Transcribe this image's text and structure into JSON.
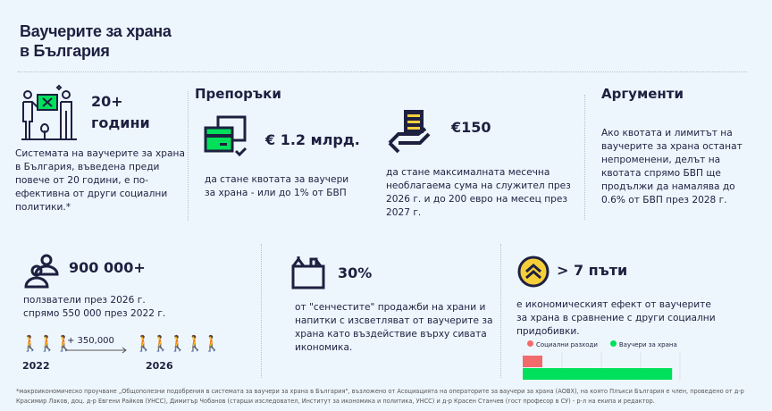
{
  "title": {
    "line1": "Ваучерите за храна",
    "line2": "в България"
  },
  "history": {
    "value": "20+",
    "unit": "години",
    "text": "Системата на ваучерите за храна в България, въведена преди повече от 20 години, е по-ефективна от други социални политики.*"
  },
  "recommendations": {
    "heading": "Препоръки",
    "quota": {
      "value": "€ 1.2 млрд.",
      "text": "да стане квотата за ваучери за храна - или до 1% от БВП"
    },
    "limit": {
      "value": "€150",
      "text": "да стане максималната месечна необлагаема сума на служител през 2026 г. и до 200 евро на месец през 2027 г."
    }
  },
  "arguments": {
    "heading": "Аргументи",
    "text": "Ако квотата и лимитът на ваучерите за храна останат непроменени, делът на квотата спрямо БВП ще продължи да намалява до 0.6% от БВП през 2028 г."
  },
  "users": {
    "value": "900 000+",
    "text1": "ползватели през 2026 г.",
    "text2": "спрямо 550 000 през 2022 г.",
    "delta": "+ 350,000",
    "year_from": "2022",
    "year_to": "2026"
  },
  "grey": {
    "value": "30%",
    "text": " от \"сенчестите\" продажби на храни и напитки с изсветляват от ваучерите за храна като въздействие върху сивата икономика."
  },
  "effect": {
    "value": "> 7 пъти",
    "text": "е икономическият ефект от ваучерите за храна в сравнение с други социални придобивки."
  },
  "chart_data": {
    "type": "bar",
    "orientation": "horizontal",
    "categories": [
      "Социални разходи",
      "Ваучери за храна"
    ],
    "values": [
      1,
      7.6
    ],
    "xlim": [
      0,
      8
    ],
    "legend": "top",
    "colors": [
      "#f26b6b",
      "#00e05a"
    ]
  },
  "footnote": "*макроикономическо проучване „Общополезни подобрения в системата за ваучери за храна в България\", възложено от Асоциацията на операторите за ваучери за храна (АОВХ), на която Плъкси България е член, проведено от д-р Красимир Лаков, доц. д-р Евгени Райков (УНСС), Димитър Чобанов (старши изследовател, Институт за икономика и политика, УНСС) и д-р Красен Станчев (гост професор в СУ) - р-л на екипа и редактор.",
  "colors": {
    "navy": "#1e2040",
    "green": "#00e05a",
    "yellow": "#f5cf3a",
    "cyan": "#28b4e6",
    "red": "#f26b6b"
  }
}
